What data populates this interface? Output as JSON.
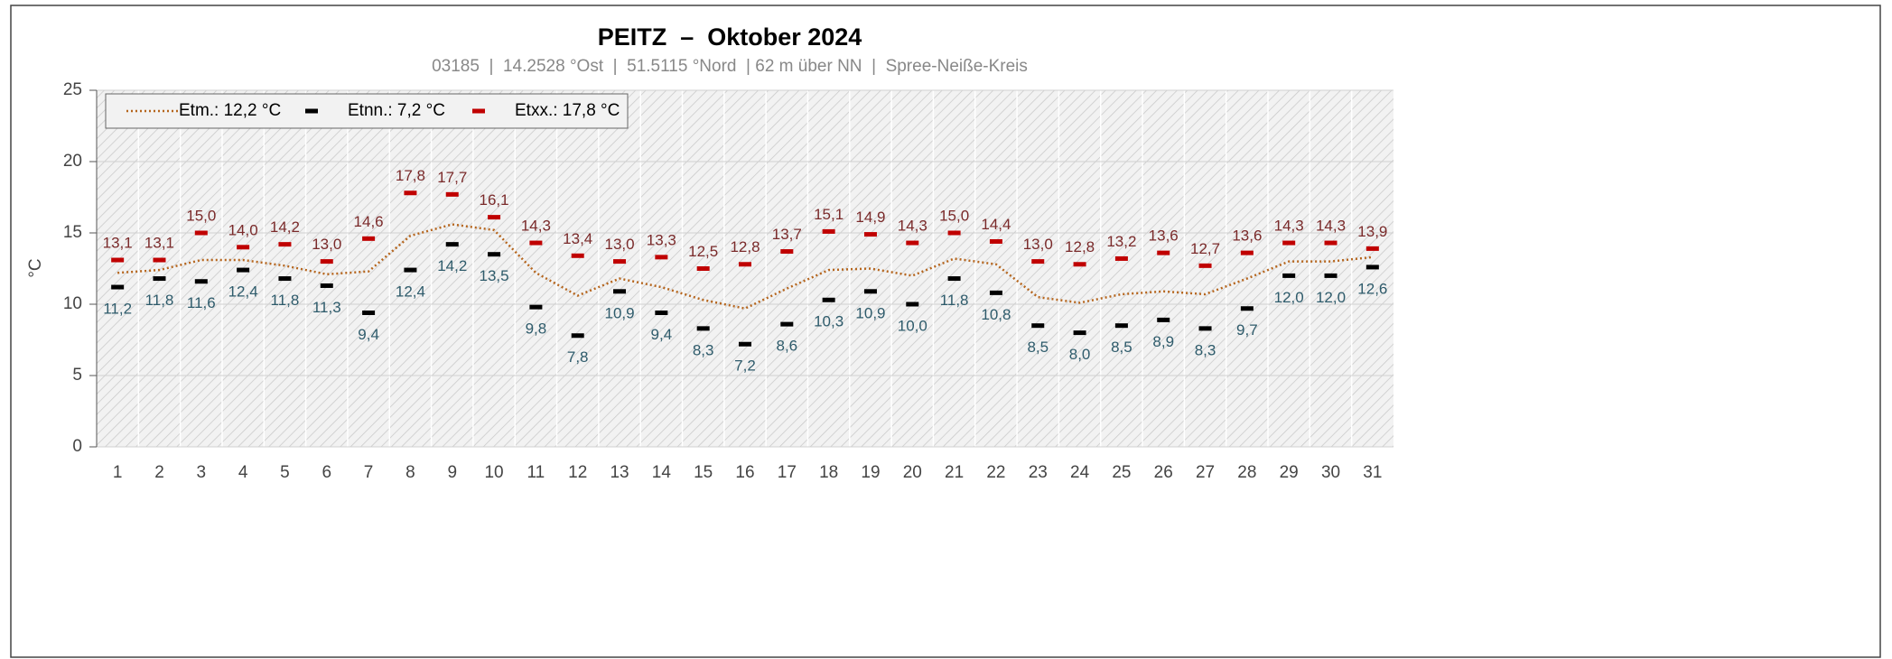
{
  "chart_data": {
    "type": "line",
    "title": "PEITZ  –  Oktober 2024",
    "subtitle": "03185  |  14.2528 °Ost  |  51.5115 °Nord  | 62 m über NN  |  Spree-Neiße-Kreis",
    "y_label": "°C",
    "categories": [
      "1",
      "2",
      "3",
      "4",
      "5",
      "6",
      "7",
      "8",
      "9",
      "10",
      "11",
      "12",
      "13",
      "14",
      "15",
      "16",
      "17",
      "18",
      "19",
      "20",
      "21",
      "22",
      "23",
      "24",
      "25",
      "26",
      "27",
      "28",
      "29",
      "30",
      "31"
    ],
    "ylim": [
      0,
      25
    ],
    "yticks": [
      0,
      5,
      10,
      15,
      20,
      25
    ],
    "grid": true,
    "legend": "top-left",
    "series": [
      {
        "name": "Etm.: 12,2 °C",
        "type": "line",
        "color": "#b5651d",
        "values": [
          12.2,
          12.4,
          13.1,
          13.1,
          12.7,
          12.1,
          12.3,
          14.8,
          15.6,
          15.2,
          12.2,
          10.6,
          11.8,
          11.2,
          10.3,
          9.7,
          11.1,
          12.4,
          12.5,
          12.0,
          13.2,
          12.8,
          10.5,
          10.1,
          10.7,
          10.9,
          10.7,
          11.8,
          13.0,
          13.0,
          13.3
        ]
      },
      {
        "name": "Etnn.: 7,2 °C",
        "type": "marker",
        "color": "#000000",
        "label_color": "#2e5b6b",
        "label_side": "below",
        "values": [
          11.2,
          11.8,
          11.6,
          12.4,
          11.8,
          11.3,
          9.4,
          12.4,
          14.2,
          13.5,
          9.8,
          7.8,
          10.9,
          9.4,
          8.3,
          7.2,
          8.6,
          10.3,
          10.9,
          10.0,
          11.8,
          10.8,
          8.5,
          8.0,
          8.5,
          8.9,
          8.3,
          9.7,
          12.0,
          12.0,
          12.6
        ],
        "value_labels": [
          "11,2",
          "11,8",
          "11,6",
          "12,4",
          "11,8",
          "11,3",
          "9,4",
          "12,4",
          "14,2",
          "13,5",
          "9,8",
          "7,8",
          "10,9",
          "9,4",
          "8,3",
          "7,2",
          "8,6",
          "10,3",
          "10,9",
          "10,0",
          "11,8",
          "10,8",
          "8,5",
          "8,0",
          "8,5",
          "8,9",
          "8,3",
          "9,7",
          "12,0",
          "12,0",
          "12,6"
        ]
      },
      {
        "name": "Etxx.: 17,8 °C",
        "type": "marker",
        "color": "#c00000",
        "label_color": "#7a2a2a",
        "label_side": "above",
        "values": [
          13.1,
          13.1,
          15.0,
          14.0,
          14.2,
          13.0,
          14.6,
          17.8,
          17.7,
          16.1,
          14.3,
          13.4,
          13.0,
          13.3,
          12.5,
          12.8,
          13.7,
          15.1,
          14.9,
          14.3,
          15.0,
          14.4,
          13.0,
          12.8,
          13.2,
          13.6,
          12.7,
          13.6,
          14.3,
          14.3,
          13.9
        ],
        "value_labels": [
          "13,1",
          "13,1",
          "15,0",
          "14,0",
          "14,2",
          "13,0",
          "14,6",
          "17,8",
          "17,7",
          "16,1",
          "14,3",
          "13,4",
          "13,0",
          "13,3",
          "12,5",
          "12,8",
          "13,7",
          "15,1",
          "14,9",
          "14,3",
          "15,0",
          "14,4",
          "13,0",
          "12,8",
          "13,2",
          "13,6",
          "12,7",
          "13,6",
          "14,3",
          "14,3",
          "13,9"
        ]
      }
    ]
  }
}
